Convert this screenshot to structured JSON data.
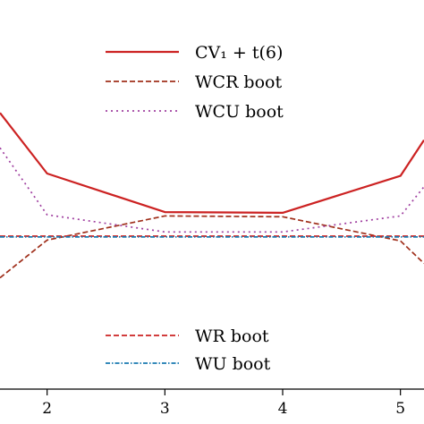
{
  "chart_data": {
    "type": "line",
    "title": "",
    "xlabel": "",
    "ylabel": "",
    "xlim": [
      1.6,
      5.2
    ],
    "ylim": [
      0,
      1
    ],
    "x_ticks": [
      2,
      3,
      4,
      5
    ],
    "x_tick_labels": [
      "2",
      "3",
      "4",
      "5"
    ],
    "grid": false,
    "legend_placement": [
      "upper-center",
      "lower-center"
    ],
    "series": [
      {
        "name": "CV₁ + t(6)",
        "color": "#cc2222",
        "style": "solid",
        "x": [
          1.6,
          2,
          3,
          4,
          5,
          5.2
        ],
        "y": [
          0.71,
          0.554,
          0.455,
          0.453,
          0.548,
          0.64
        ]
      },
      {
        "name": "WCR boot",
        "color": "#a0301c",
        "style": "dashed",
        "x": [
          1.6,
          2,
          3,
          4,
          5,
          5.2
        ],
        "y": [
          0.286,
          0.383,
          0.445,
          0.443,
          0.381,
          0.323
        ]
      },
      {
        "name": "WCU boot",
        "color": "#a040a0",
        "style": "dotted",
        "x": [
          1.6,
          2,
          3,
          4,
          5,
          5.2
        ],
        "y": [
          0.62,
          0.448,
          0.404,
          0.404,
          0.445,
          0.52
        ]
      },
      {
        "name": "WR boot",
        "color": "#cc2222",
        "style": "dashed",
        "x": [
          1.6,
          2,
          3,
          4,
          5,
          5.2
        ],
        "y": [
          0.393,
          0.393,
          0.393,
          0.393,
          0.393,
          0.393
        ]
      },
      {
        "name": "WU boot",
        "color": "#1a7ab0",
        "style": "dash-dot",
        "x": [
          1.6,
          2,
          3,
          4,
          5,
          5.2
        ],
        "y": [
          0.391,
          0.391,
          0.391,
          0.391,
          0.391,
          0.391
        ]
      }
    ],
    "legends": [
      {
        "entries": [
          "CV₁ + t(6)",
          "WCR boot",
          "WCU boot"
        ]
      },
      {
        "entries": [
          "WR boot",
          "WU boot"
        ]
      }
    ]
  }
}
